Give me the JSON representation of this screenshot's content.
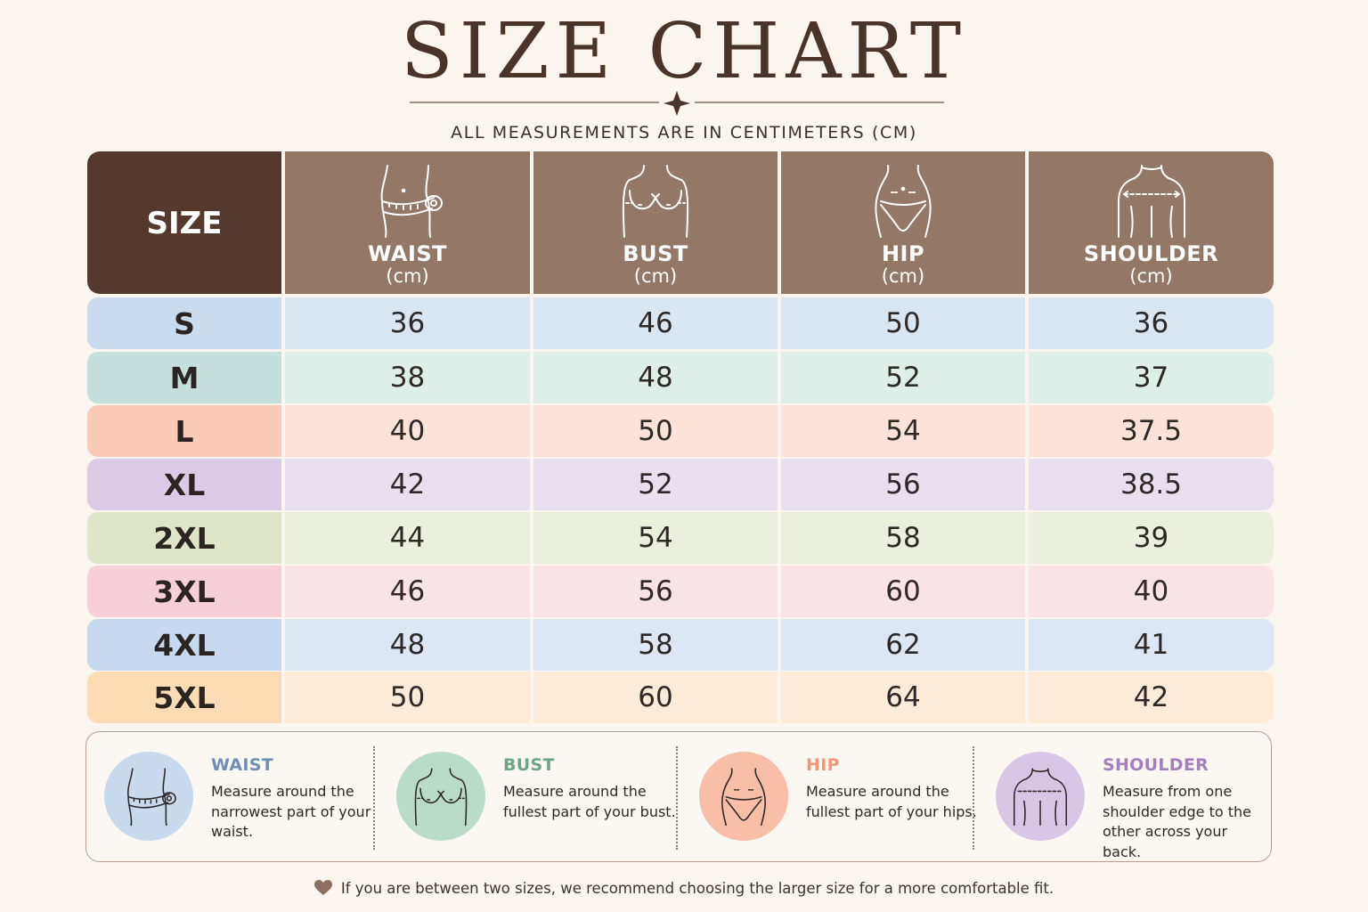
{
  "title": "SIZE CHART",
  "subtitle": "ALL MEASUREMENTS ARE IN CENTIMETERS (CM)",
  "table": {
    "size_header": "SIZE",
    "columns": [
      {
        "name": "WAIST",
        "unit": "(cm)",
        "icon": "waist-tape-icon"
      },
      {
        "name": "BUST",
        "unit": "(cm)",
        "icon": "bust-icon"
      },
      {
        "name": "HIP",
        "unit": "(cm)",
        "icon": "hip-icon"
      },
      {
        "name": "SHOULDER",
        "unit": "(cm)",
        "icon": "shoulder-icon"
      }
    ],
    "rows": [
      {
        "size": "S",
        "values": [
          "36",
          "46",
          "50",
          "36"
        ],
        "size_color": "#c9dbef",
        "row_color": "#dbe6f3"
      },
      {
        "size": "M",
        "values": [
          "38",
          "48",
          "52",
          "37"
        ],
        "size_color": "#c5e0dc",
        "row_color": "#dfeee9"
      },
      {
        "size": "L",
        "values": [
          "40",
          "50",
          "54",
          "37.5"
        ],
        "size_color": "#fccbb7",
        "row_color": "#fde3d7"
      },
      {
        "size": "XL",
        "values": [
          "42",
          "52",
          "56",
          "38.5"
        ],
        "size_color": "#dccbe6",
        "row_color": "#e9e0ef"
      },
      {
        "size": "2XL",
        "values": [
          "44",
          "54",
          "58",
          "39"
        ],
        "size_color": "#dfe6c7",
        "row_color": "#ebefdd"
      },
      {
        "size": "3XL",
        "values": [
          "46",
          "56",
          "60",
          "40"
        ],
        "size_color": "#f6cfd8",
        "row_color": "#fae3e7"
      },
      {
        "size": "4XL",
        "values": [
          "48",
          "58",
          "62",
          "41"
        ],
        "size_color": "#c6d9f0",
        "row_color": "#dde7f4"
      },
      {
        "size": "5XL",
        "values": [
          "50",
          "60",
          "64",
          "42"
        ],
        "size_color": "#fbdcb5",
        "row_color": "#fdebd7"
      }
    ]
  },
  "guide": [
    {
      "title": "WAIST",
      "text": "Measure around the narrowest part of your waist.",
      "color": "#6f8fb6",
      "circle_color": "#c9daef",
      "icon": "waist-tape-icon"
    },
    {
      "title": "BUST",
      "text": "Measure around the fullest part of your bust.",
      "color": "#6ea486",
      "circle_color": "#b9dcc8",
      "icon": "bust-icon"
    },
    {
      "title": "HIP",
      "text": "Measure around the fullest part of your hips.",
      "color": "#ee9878",
      "circle_color": "#f8bea7",
      "icon": "hip-icon"
    },
    {
      "title": "SHOULDER",
      "text": "Measure from one shoulder edge to the other across your back.",
      "color": "#a57fbd",
      "circle_color": "#d8c6e6",
      "icon": "shoulder-icon"
    }
  ],
  "footer": "If you are between two sizes, we recommend choosing the larger size for a more comfortable fit."
}
